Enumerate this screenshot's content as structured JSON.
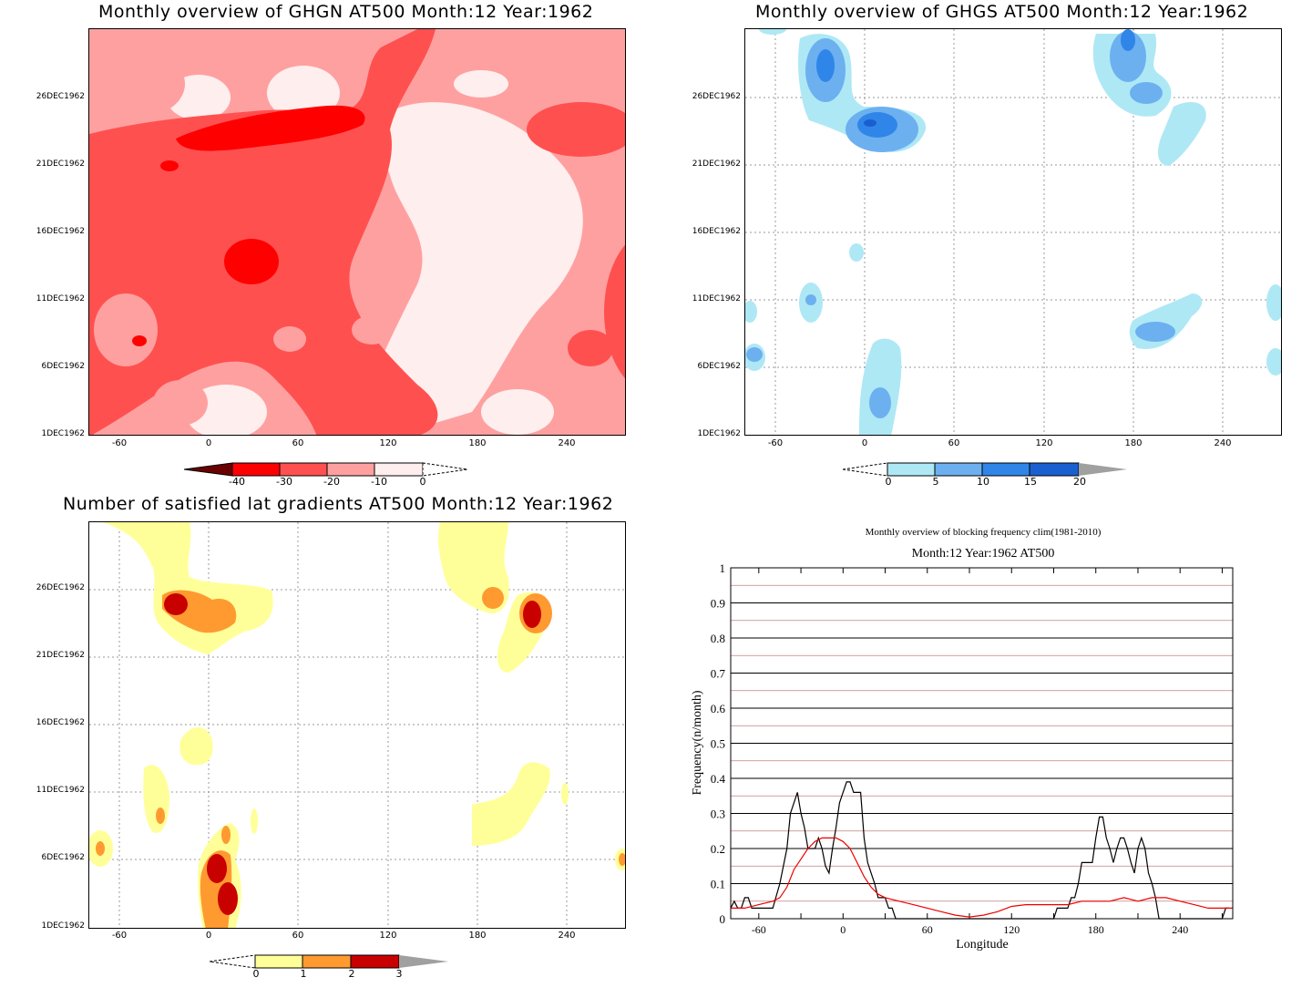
{
  "panels": [
    {
      "id": "ghgn",
      "title": "Monthly overview of GHGN AT500 Month:12 Year:1962",
      "yticks": [
        "26DEC1962",
        "21DEC1962",
        "16DEC1962",
        "11DEC1962",
        "6DEC1962",
        "1DEC1962"
      ],
      "xticks": [
        "-60",
        "0",
        "60",
        "120",
        "180",
        "240"
      ],
      "colorbar": {
        "labels": [
          "-40",
          "-30",
          "-20",
          "-10",
          "0"
        ],
        "colors": [
          "#6b0000",
          "#ff0000",
          "#ff5050",
          "#ffa0a0",
          "#ffeeee"
        ]
      }
    },
    {
      "id": "ghgs",
      "title": "Monthly overview of GHGS AT500 Month:12 Year:1962",
      "yticks": [
        "26DEC1962",
        "21DEC1962",
        "16DEC1962",
        "11DEC1962",
        "6DEC1962",
        "1DEC1962"
      ],
      "xticks": [
        "-60",
        "0",
        "60",
        "120",
        "180",
        "240"
      ],
      "colorbar": {
        "labels": [
          "0",
          "5",
          "10",
          "15",
          "20"
        ],
        "colors": [
          "#aee8f5",
          "#6cb0f0",
          "#2f86e8",
          "#1a5fd0",
          "#a0a0a0"
        ]
      }
    },
    {
      "id": "lat",
      "title": "Number of satisfied lat gradients AT500 Month:12 Year:1962",
      "yticks": [
        "26DEC1962",
        "21DEC1962",
        "16DEC1962",
        "11DEC1962",
        "6DEC1962",
        "1DEC1962"
      ],
      "xticks": [
        "-60",
        "0",
        "60",
        "120",
        "180",
        "240"
      ],
      "colorbar": {
        "labels": [
          "0",
          "1",
          "2",
          "3"
        ],
        "colors": [
          "#ffff99",
          "#ff9a30",
          "#c80000",
          "#a0a0a0"
        ]
      }
    }
  ],
  "chart_data": {
    "type": "line",
    "title": "Monthly overview of blocking frequency clim(1981-2010)",
    "subtitle": "Month:12 Year:1962  AT500",
    "xlabel": "Longitude",
    "ylabel": "Frequency(n/month)",
    "xlim": [
      -80,
      277.5
    ],
    "ylim": [
      0,
      1
    ],
    "xticks": [
      "-60",
      "0",
      "60",
      "120",
      "180",
      "240"
    ],
    "yticks": [
      "0",
      "0.1",
      "0.2",
      "0.3",
      "0.4",
      "0.5",
      "0.6",
      "0.7",
      "0.8",
      "0.9",
      "1"
    ],
    "grid": true,
    "series": [
      {
        "color": "#000000",
        "x": [
          -80,
          -77.5,
          -75,
          -72.5,
          -70,
          -67.5,
          -65,
          -62.5,
          -60,
          -55,
          -50,
          -45,
          -40,
          -37.5,
          -35,
          -32.5,
          -30,
          -27.5,
          -25,
          -22.5,
          -20,
          -17.5,
          -15,
          -12.5,
          -10,
          -7.5,
          -5,
          -2.5,
          0,
          2.5,
          5,
          7.5,
          10,
          12.5,
          15,
          17.5,
          20,
          22.5,
          25,
          27.5,
          30,
          32.5,
          35,
          37.5,
          40,
          42.5,
          45,
          150,
          152.5,
          155,
          157.5,
          160,
          162.5,
          165,
          167.5,
          170,
          172.5,
          175,
          177.5,
          180,
          182.5,
          185,
          187.5,
          190,
          192.5,
          195,
          197.5,
          200,
          202.5,
          205,
          207.5,
          210,
          212.5,
          215,
          217.5,
          220,
          222.5,
          225,
          227.5,
          230,
          232.5,
          235,
          237.5,
          240,
          242.5,
          245,
          270,
          272.5,
          275
        ],
        "y": [
          0.03,
          0.05,
          0.03,
          0.03,
          0.06,
          0.06,
          0.03,
          0.03,
          0.03,
          0.03,
          0.03,
          0.1,
          0.2,
          0.3,
          0.33,
          0.36,
          0.3,
          0.26,
          0.2,
          0.2,
          0.2,
          0.23,
          0.2,
          0.15,
          0.13,
          0.2,
          0.26,
          0.33,
          0.36,
          0.39,
          0.39,
          0.36,
          0.36,
          0.36,
          0.23,
          0.16,
          0.13,
          0.1,
          0.06,
          0.06,
          0.06,
          0.03,
          0.03,
          0.0,
          0.0,
          0.0,
          0.0,
          0.0,
          0.03,
          0.03,
          0.03,
          0.03,
          0.06,
          0.06,
          0.1,
          0.16,
          0.16,
          0.16,
          0.16,
          0.23,
          0.29,
          0.29,
          0.23,
          0.2,
          0.16,
          0.2,
          0.23,
          0.23,
          0.2,
          0.16,
          0.13,
          0.2,
          0.23,
          0.2,
          0.13,
          0.1,
          0.06,
          0.0,
          0.0,
          0.0,
          0.0,
          0.0,
          0.0,
          0.0,
          0.0,
          0.0,
          0.0,
          0.03,
          0.03
        ]
      },
      {
        "color": "#ee0000",
        "x": [
          -80,
          -70,
          -60,
          -50,
          -45,
          -40,
          -35,
          -30,
          -25,
          -20,
          -15,
          -10,
          -5,
          0,
          5,
          10,
          15,
          20,
          25,
          30,
          40,
          50,
          60,
          70,
          80,
          90,
          100,
          110,
          120,
          130,
          140,
          150,
          160,
          170,
          180,
          190,
          200,
          210,
          220,
          230,
          240,
          250,
          260,
          270,
          277.5
        ],
        "y": [
          0.03,
          0.03,
          0.04,
          0.05,
          0.06,
          0.09,
          0.14,
          0.17,
          0.2,
          0.22,
          0.23,
          0.23,
          0.23,
          0.22,
          0.2,
          0.16,
          0.12,
          0.09,
          0.07,
          0.06,
          0.05,
          0.04,
          0.03,
          0.02,
          0.01,
          0.005,
          0.01,
          0.02,
          0.035,
          0.04,
          0.04,
          0.04,
          0.04,
          0.05,
          0.05,
          0.05,
          0.06,
          0.05,
          0.06,
          0.06,
          0.05,
          0.04,
          0.03,
          0.03,
          0.03
        ]
      }
    ]
  }
}
